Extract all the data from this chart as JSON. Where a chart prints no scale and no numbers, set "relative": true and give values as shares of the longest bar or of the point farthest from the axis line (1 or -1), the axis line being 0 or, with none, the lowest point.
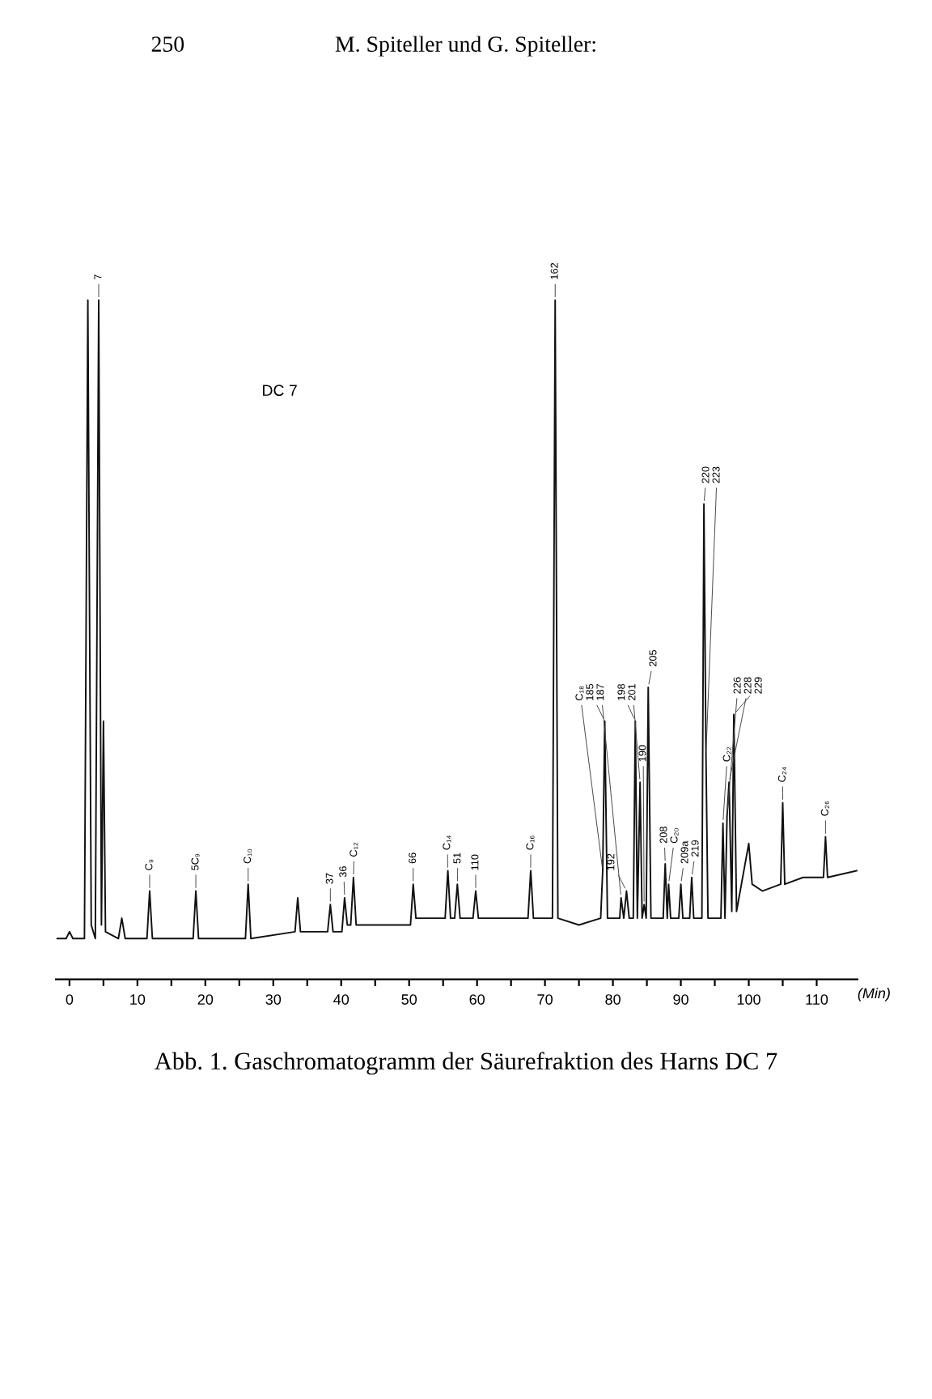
{
  "chart_data": {
    "type": "line",
    "relative": true,
    "title": "Abb. 1. Gaschromatogramm der Säurefraktion des Harns DC 7",
    "xlabel": "(Min)",
    "annotations": [
      "250",
      "M. Spiteller und G. Spiteller:",
      "DC 7",
      {
        "text": "7",
        "x": 4.3,
        "y": 1.0
      },
      {
        "text": "C₉",
        "x": 11.8,
        "y": 0.13
      },
      {
        "text": "5C₉",
        "x": 18.6,
        "y": 0.13
      },
      {
        "text": "C₁₀",
        "x": 26.3,
        "y": 0.14
      },
      {
        "text": "37",
        "x": 38.4,
        "y": 0.11
      },
      {
        "text": "36",
        "x": 40.5,
        "y": 0.12
      },
      {
        "text": "C₁₂",
        "x": 41.8,
        "y": 0.15
      },
      {
        "text": "66",
        "x": 50.6,
        "y": 0.14
      },
      {
        "text": "C₁₄",
        "x": 55.7,
        "y": 0.16
      },
      {
        "text": "51",
        "x": 57.1,
        "y": 0.14
      },
      {
        "text": "110",
        "x": 59.8,
        "y": 0.13
      },
      {
        "text": "C₁₆",
        "x": 67.9,
        "y": 0.16
      },
      {
        "text": "162",
        "x": 71.5,
        "y": 1.0
      },
      {
        "text": "C₁₈",
        "x": 78.5,
        "y": 0.16
      },
      {
        "text": "185",
        "x": 78.8,
        "y": 0.38
      },
      {
        "text": "187",
        "x": 81.2,
        "y": 0.12
      },
      {
        "text": "192",
        "x": 82.0,
        "y": 0.13
      },
      {
        "text": "198",
        "x": 83.3,
        "y": 0.38
      },
      {
        "text": "201",
        "x": 84.0,
        "y": 0.29
      },
      {
        "text": "190",
        "x": 84.6,
        "y": 0.11
      },
      {
        "text": "205",
        "x": 85.2,
        "y": 0.43
      },
      {
        "text": "208",
        "x": 87.7,
        "y": 0.17
      },
      {
        "text": "C₂₀",
        "x": 88.2,
        "y": 0.14
      },
      {
        "text": "209a",
        "x": 90.0,
        "y": 0.14
      },
      {
        "text": "219",
        "x": 91.6,
        "y": 0.15
      },
      {
        "text": "220",
        "x": 93.4,
        "y": 0.7
      },
      {
        "text": "223",
        "x": 93.7,
        "y": 0.33
      },
      {
        "text": "C₂₂",
        "x": 96.2,
        "y": 0.23
      },
      {
        "text": "226",
        "x": 96.8,
        "y": 0.24
      },
      {
        "text": "228",
        "x": 97.1,
        "y": 0.29
      },
      {
        "text": "229",
        "x": 97.8,
        "y": 0.39
      },
      {
        "text": "C₂₄",
        "x": 105.0,
        "y": 0.26
      },
      {
        "text": "C₂₆",
        "x": 111.3,
        "y": 0.21
      }
    ],
    "xlim": [
      -2,
      116
    ],
    "xticks": [
      0,
      {
        "value": 5,
        "label": null
      },
      10,
      {
        "value": 15,
        "label": null
      },
      20,
      {
        "value": 25,
        "label": null
      },
      30,
      {
        "value": 35,
        "label": null
      },
      40,
      {
        "value": 45,
        "label": null
      },
      50,
      {
        "value": 55,
        "label": null
      },
      60,
      {
        "value": 65,
        "label": null
      },
      70,
      {
        "value": 75,
        "label": null
      },
      80,
      {
        "value": 85,
        "label": null
      },
      90,
      {
        "value": 95,
        "label": null
      },
      100,
      {
        "value": 105,
        "label": null
      },
      110
    ],
    "grid": false,
    "series": [
      {
        "color": "#111111",
        "x": [
          -1.8,
          -0.5,
          0,
          0.5,
          2.2,
          2.7,
          3.2,
          3.8,
          4.3,
          4.7,
          5.0,
          5.3,
          7.2,
          7.7,
          8.2,
          11.4,
          11.8,
          12.2,
          18.2,
          18.6,
          19.0,
          25.9,
          26.3,
          26.7,
          33.2,
          33.6,
          34.0,
          38.0,
          38.4,
          38.8,
          40.1,
          40.5,
          40.9,
          41.4,
          41.8,
          42.2,
          45,
          50.2,
          50.6,
          51.0,
          55.3,
          55.7,
          56.1,
          56.7,
          57.1,
          57.5,
          59.4,
          59.8,
          60.2,
          67.5,
          67.9,
          68.3,
          71.1,
          71.5,
          71.9,
          75,
          78.2,
          78.5,
          78.8,
          79.2,
          81.0,
          81.2,
          81.6,
          82.0,
          82.4,
          83.0,
          83.3,
          83.6,
          84.0,
          84.3,
          84.6,
          84.9,
          85.2,
          85.6,
          87.4,
          87.7,
          88.0,
          88.2,
          88.5,
          89.7,
          90.0,
          90.3,
          91.3,
          91.6,
          91.9,
          93.1,
          93.4,
          93.7,
          94.0,
          95.9,
          96.2,
          96.5,
          96.8,
          97.1,
          97.5,
          97.8,
          98.2,
          100,
          100.5,
          102,
          104.7,
          105.0,
          105.3,
          108,
          111.0,
          111.3,
          111.6,
          115.9
        ],
        "values": [
          0.06,
          0.06,
          0.07,
          0.06,
          0.06,
          1.0,
          0.08,
          0.06,
          1.0,
          0.08,
          0.38,
          0.07,
          0.06,
          0.09,
          0.06,
          0.06,
          0.13,
          0.06,
          0.06,
          0.13,
          0.06,
          0.06,
          0.14,
          0.06,
          0.07,
          0.12,
          0.07,
          0.07,
          0.11,
          0.07,
          0.07,
          0.12,
          0.08,
          0.08,
          0.15,
          0.08,
          0.08,
          0.08,
          0.14,
          0.09,
          0.09,
          0.16,
          0.09,
          0.09,
          0.14,
          0.09,
          0.09,
          0.13,
          0.09,
          0.09,
          0.16,
          0.09,
          0.09,
          1.0,
          0.09,
          0.08,
          0.09,
          0.16,
          0.38,
          0.09,
          0.09,
          0.12,
          0.09,
          0.13,
          0.09,
          0.09,
          0.38,
          0.09,
          0.29,
          0.09,
          0.11,
          0.09,
          0.43,
          0.09,
          0.09,
          0.17,
          0.09,
          0.14,
          0.09,
          0.09,
          0.14,
          0.09,
          0.09,
          0.15,
          0.09,
          0.09,
          0.7,
          0.33,
          0.09,
          0.09,
          0.23,
          0.09,
          0.24,
          0.29,
          0.1,
          0.39,
          0.1,
          0.2,
          0.14,
          0.13,
          0.14,
          0.26,
          0.14,
          0.15,
          0.15,
          0.21,
          0.15,
          0.16
        ]
      }
    ]
  }
}
